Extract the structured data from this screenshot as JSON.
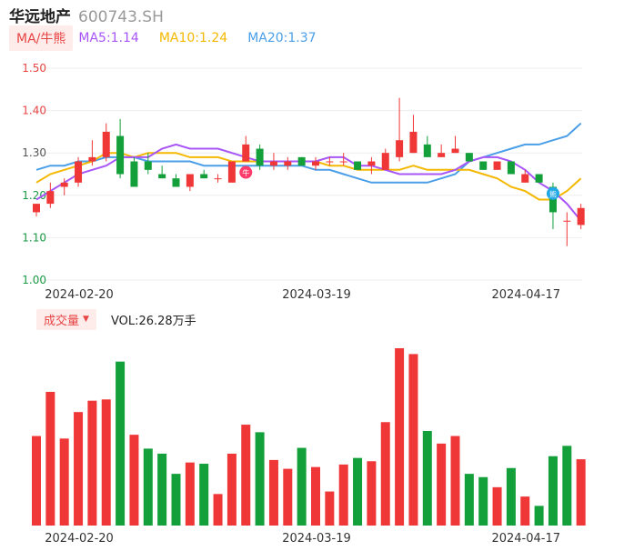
{
  "header": {
    "name": "华远地产",
    "code": "600743.SH"
  },
  "ma_legend": {
    "mode_label": "MA/牛熊",
    "items": [
      {
        "label": "MA5:1.14",
        "color": "#a855f7"
      },
      {
        "label": "MA10:1.24",
        "color": "#f5b800"
      },
      {
        "label": "MA20:1.37",
        "color": "#4a9fe8"
      }
    ]
  },
  "volume_legend": {
    "mode_label": "成交量",
    "value_label": "VOL:26.28万手"
  },
  "markers": {
    "bull": "牛",
    "bear": "熊"
  },
  "colors": {
    "up": "#f03737",
    "down": "#13a03a",
    "grid": "#eeeeee",
    "axis_up": "#e84545",
    "axis_down": "#1a9a45"
  },
  "chart_data": [
    {
      "type": "candlestick",
      "y_ticks": [
        "1.50",
        "1.40",
        "1.30",
        "1.20",
        "1.10",
        "1.00"
      ],
      "ylim": [
        1.0,
        1.5
      ],
      "x_ticks": [
        {
          "index": 3,
          "label": "2024-02-20"
        },
        {
          "index": 20,
          "label": "2024-03-19"
        },
        {
          "index": 35,
          "label": "2024-04-17"
        }
      ],
      "ohlc": [
        [
          1.16,
          1.18,
          1.15,
          1.18
        ],
        [
          1.18,
          1.23,
          1.17,
          1.21
        ],
        [
          1.22,
          1.24,
          1.2,
          1.23
        ],
        [
          1.23,
          1.29,
          1.22,
          1.28
        ],
        [
          1.28,
          1.33,
          1.27,
          1.29
        ],
        [
          1.29,
          1.37,
          1.28,
          1.35
        ],
        [
          1.34,
          1.38,
          1.24,
          1.25
        ],
        [
          1.28,
          1.29,
          1.22,
          1.22
        ],
        [
          1.28,
          1.3,
          1.25,
          1.26
        ],
        [
          1.25,
          1.27,
          1.24,
          1.24
        ],
        [
          1.24,
          1.25,
          1.22,
          1.22
        ],
        [
          1.22,
          1.25,
          1.21,
          1.25
        ],
        [
          1.25,
          1.26,
          1.24,
          1.24
        ],
        [
          1.24,
          1.25,
          1.23,
          1.24
        ],
        [
          1.23,
          1.28,
          1.23,
          1.28
        ],
        [
          1.28,
          1.34,
          1.28,
          1.32
        ],
        [
          1.31,
          1.32,
          1.26,
          1.27
        ],
        [
          1.27,
          1.3,
          1.26,
          1.28
        ],
        [
          1.27,
          1.29,
          1.26,
          1.28
        ],
        [
          1.29,
          1.29,
          1.27,
          1.27
        ],
        [
          1.27,
          1.29,
          1.26,
          1.28
        ],
        [
          1.28,
          1.29,
          1.27,
          1.28
        ],
        [
          1.28,
          1.3,
          1.27,
          1.28
        ],
        [
          1.28,
          1.28,
          1.26,
          1.26
        ],
        [
          1.27,
          1.29,
          1.25,
          1.28
        ],
        [
          1.26,
          1.31,
          1.26,
          1.3
        ],
        [
          1.29,
          1.43,
          1.28,
          1.33
        ],
        [
          1.3,
          1.39,
          1.3,
          1.35
        ],
        [
          1.32,
          1.34,
          1.29,
          1.29
        ],
        [
          1.29,
          1.32,
          1.29,
          1.3
        ],
        [
          1.3,
          1.34,
          1.3,
          1.31
        ],
        [
          1.3,
          1.3,
          1.28,
          1.28
        ],
        [
          1.28,
          1.28,
          1.26,
          1.26
        ],
        [
          1.26,
          1.28,
          1.26,
          1.28
        ],
        [
          1.28,
          1.28,
          1.25,
          1.25
        ],
        [
          1.23,
          1.26,
          1.23,
          1.25
        ],
        [
          1.25,
          1.25,
          1.23,
          1.23
        ],
        [
          1.22,
          1.23,
          1.12,
          1.16
        ],
        [
          1.14,
          1.16,
          1.08,
          1.14
        ],
        [
          1.13,
          1.18,
          1.12,
          1.17
        ]
      ],
      "ma5": [
        1.19,
        1.21,
        1.23,
        1.25,
        1.26,
        1.27,
        1.29,
        1.29,
        1.29,
        1.31,
        1.32,
        1.31,
        1.31,
        1.31,
        1.3,
        1.29,
        1.28,
        1.28,
        1.28,
        1.28,
        1.28,
        1.29,
        1.29,
        1.27,
        1.27,
        1.26,
        1.25,
        1.25,
        1.25,
        1.25,
        1.26,
        1.28,
        1.29,
        1.29,
        1.28,
        1.26,
        1.23,
        1.21,
        1.18,
        1.14
      ],
      "ma10": [
        1.23,
        1.25,
        1.26,
        1.27,
        1.28,
        1.3,
        1.3,
        1.29,
        1.3,
        1.3,
        1.3,
        1.29,
        1.29,
        1.29,
        1.28,
        1.28,
        1.28,
        1.28,
        1.28,
        1.28,
        1.28,
        1.27,
        1.27,
        1.26,
        1.26,
        1.26,
        1.26,
        1.27,
        1.26,
        1.26,
        1.26,
        1.26,
        1.25,
        1.24,
        1.22,
        1.21,
        1.19,
        1.19,
        1.21,
        1.24
      ],
      "ma20": [
        1.26,
        1.27,
        1.27,
        1.28,
        1.28,
        1.29,
        1.29,
        1.29,
        1.28,
        1.28,
        1.28,
        1.28,
        1.27,
        1.27,
        1.27,
        1.27,
        1.27,
        1.27,
        1.27,
        1.27,
        1.26,
        1.26,
        1.25,
        1.24,
        1.23,
        1.23,
        1.23,
        1.23,
        1.23,
        1.24,
        1.25,
        1.28,
        1.29,
        1.3,
        1.31,
        1.32,
        1.32,
        1.33,
        1.34,
        1.37
      ],
      "signals": [
        {
          "index": 15,
          "type": "bull"
        },
        {
          "index": 37,
          "type": "bear"
        }
      ]
    },
    {
      "type": "bar",
      "series": [
        {
          "name": "成交量",
          "unit": "万手",
          "values": [
            35.5,
            53,
            34.5,
            45,
            49.5,
            50,
            65,
            36,
            30.5,
            28.5,
            20.5,
            25,
            24.5,
            12.5,
            28.5,
            40,
            37,
            26,
            22.5,
            30.8,
            23.2,
            13.5,
            24.2,
            26.8,
            25.5,
            41,
            70.3,
            68,
            37.5,
            32.5,
            35.5,
            20.5,
            19.2,
            15.2,
            22.8,
            11.5,
            7.8,
            27.5,
            31.6,
            26.28
          ]
        }
      ],
      "colors": [
        "up",
        "up",
        "up",
        "up",
        "up",
        "up",
        "down",
        "up",
        "down",
        "down",
        "down",
        "up",
        "down",
        "up",
        "up",
        "up",
        "down",
        "up",
        "up",
        "down",
        "up",
        "up",
        "up",
        "down",
        "up",
        "up",
        "up",
        "up",
        "down",
        "up",
        "up",
        "down",
        "down",
        "up",
        "down",
        "up",
        "down",
        "down",
        "down",
        "up"
      ],
      "x_ticks": [
        {
          "index": 3,
          "label": "2024-02-20"
        },
        {
          "index": 20,
          "label": "2024-03-19"
        },
        {
          "index": 35,
          "label": "2024-04-17"
        }
      ]
    }
  ]
}
